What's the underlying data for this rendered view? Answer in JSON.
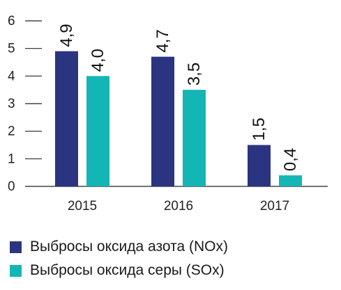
{
  "chart_data": {
    "type": "bar",
    "title": "",
    "xlabel": "",
    "ylabel": "",
    "categories": [
      "2015",
      "2016",
      "2017"
    ],
    "ylim": [
      0,
      6
    ],
    "yticks": [
      0,
      1,
      2,
      3,
      4,
      5,
      6
    ],
    "grid": false,
    "legend_position": "bottom-left",
    "series": [
      {
        "name": "Выбросы оксида азота (NOx)",
        "color": "#2b3480",
        "values": [
          4.9,
          4.7,
          1.5
        ],
        "labels": [
          "4,9",
          "4,7",
          "1,5"
        ]
      },
      {
        "name": "Выбросы оксида серы (SOx)",
        "color": "#14b5b5",
        "values": [
          4.0,
          3.5,
          0.4
        ],
        "labels": [
          "4,0",
          "3,5",
          "0,4"
        ]
      }
    ]
  }
}
